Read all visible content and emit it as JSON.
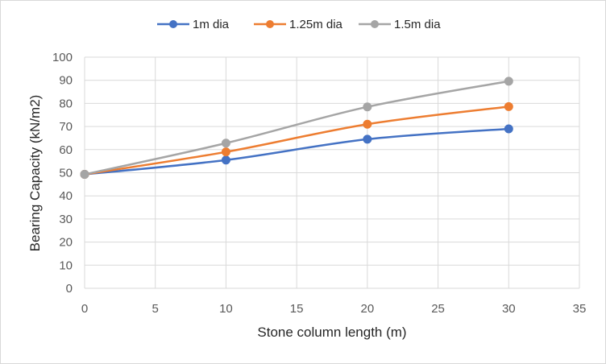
{
  "chart_data": {
    "type": "line",
    "title": "",
    "xlabel": "Stone column length (m)",
    "ylabel": "Bearing Capacity (kN/m2)",
    "xlim": [
      0,
      35
    ],
    "ylim": [
      0,
      100
    ],
    "xticks": [
      0,
      5,
      10,
      15,
      20,
      25,
      30,
      35
    ],
    "yticks": [
      0,
      10,
      20,
      30,
      40,
      50,
      60,
      70,
      80,
      90,
      100
    ],
    "grid": "vertical and horizontal",
    "legend": "top",
    "x": [
      0,
      10,
      20,
      30
    ],
    "series": [
      {
        "name": "1m dia",
        "color": "#4472c4",
        "values": [
          49.3,
          55.5,
          64.5,
          69
        ]
      },
      {
        "name": "1.25m dia",
        "color": "#ed7d31",
        "values": [
          49.3,
          59,
          71,
          78.6
        ]
      },
      {
        "name": "1.5m dia",
        "color": "#a5a5a5",
        "values": [
          49.3,
          62.8,
          78.5,
          89.6
        ]
      }
    ]
  }
}
